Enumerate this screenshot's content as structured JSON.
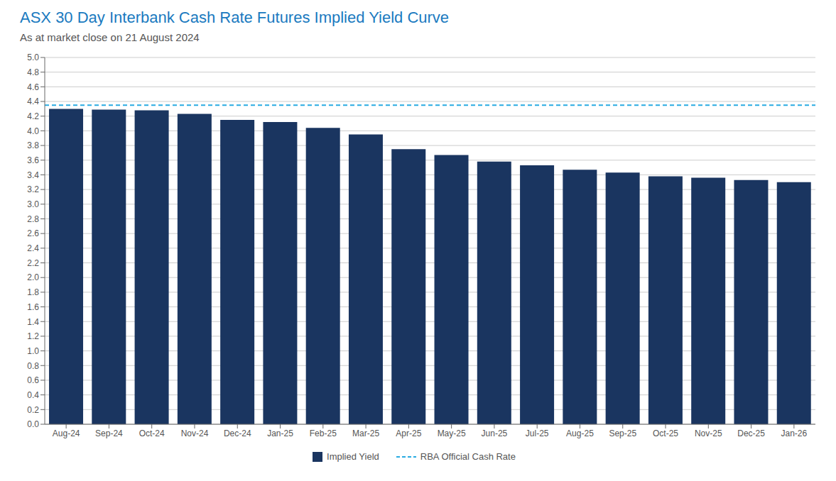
{
  "chart_data": {
    "type": "bar",
    "title": "ASX 30 Day Interbank Cash Rate Futures Implied Yield Curve",
    "subtitle": "As at market close on 21 August 2024",
    "categories": [
      "Aug-24",
      "Sep-24",
      "Oct-24",
      "Nov-24",
      "Dec-24",
      "Jan-25",
      "Feb-25",
      "Mar-25",
      "Apr-25",
      "May-25",
      "Jun-25",
      "Jul-25",
      "Aug-25",
      "Sep-25",
      "Oct-25",
      "Nov-25",
      "Dec-25",
      "Jan-26"
    ],
    "series": [
      {
        "name": "Implied Yield",
        "color": "#1a3560",
        "values": [
          4.3,
          4.29,
          4.28,
          4.23,
          4.15,
          4.12,
          4.04,
          3.95,
          3.75,
          3.67,
          3.58,
          3.53,
          3.47,
          3.43,
          3.38,
          3.36,
          3.33,
          3.3
        ]
      }
    ],
    "reference_line": {
      "value": 4.35,
      "label": "RBA Official Cash Rate",
      "color": "#29abe2",
      "line_style": "dashed"
    },
    "ylim": [
      0.0,
      5.0
    ],
    "yticks": [
      {
        "value": 0,
        "label": "0.0"
      },
      0.2,
      0.4,
      0.6,
      0.8,
      {
        "value": 1,
        "label": "1.0"
      },
      1.2,
      1.4,
      1.6,
      1.8,
      {
        "value": 2,
        "label": "2.0"
      },
      2.2,
      2.4,
      2.6,
      2.8,
      {
        "value": 3,
        "label": "3.0"
      },
      3.2,
      3.4,
      3.6,
      3.8,
      {
        "value": 4,
        "label": "4.0"
      },
      4.2,
      4.4,
      4.6,
      4.8,
      {
        "value": 5,
        "label": "5.0"
      }
    ],
    "grid": true,
    "legend": "bottom"
  }
}
